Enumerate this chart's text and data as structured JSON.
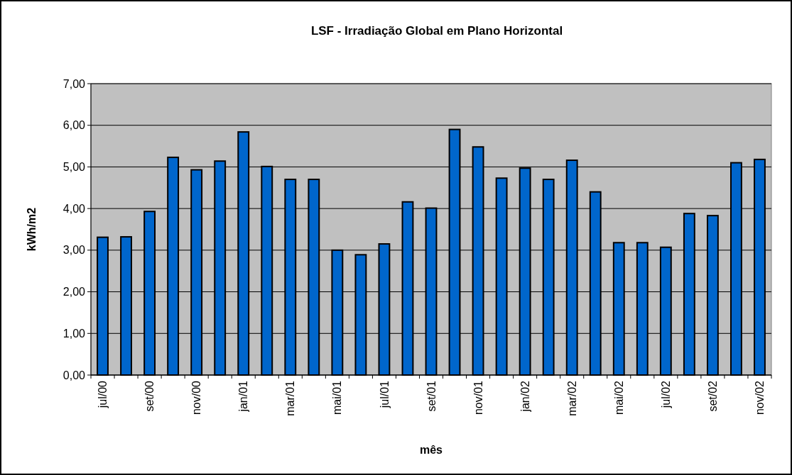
{
  "chart_data": {
    "type": "bar",
    "title": "LSF - Irradiação Global em Plano Horizontal",
    "xlabel": "mês",
    "ylabel": "kWh/m2",
    "categories": [
      "jul/00",
      null,
      "set/00",
      null,
      "nov/00",
      null,
      "jan/01",
      null,
      "mar/01",
      null,
      "mai/01",
      null,
      "jul/01",
      null,
      "set/01",
      null,
      "nov/01",
      null,
      "jan/02",
      null,
      "mar/02",
      null,
      "mai/02",
      null,
      "jul/02",
      null,
      "set/02",
      null,
      "nov/02"
    ],
    "values": [
      3.31,
      3.32,
      3.93,
      5.23,
      4.93,
      5.14,
      5.84,
      5.01,
      4.7,
      4.7,
      3.0,
      2.89,
      3.15,
      4.16,
      4.01,
      5.9,
      5.48,
      4.73,
      4.97,
      4.7,
      5.16,
      4.4,
      3.18,
      3.18,
      3.07,
      3.88,
      3.83,
      5.1,
      5.18
    ],
    "color": "#0066cc",
    "ylim": [
      0,
      7
    ],
    "yticks": [
      {
        "value": 0,
        "label": "0,00"
      },
      {
        "value": 1,
        "label": "1,00"
      },
      {
        "value": 2,
        "label": "2,00"
      },
      {
        "value": 3,
        "label": "3,00"
      },
      {
        "value": 4,
        "label": "4,00"
      },
      {
        "value": 5,
        "label": "5,00"
      },
      {
        "value": 6,
        "label": "6,00"
      },
      {
        "value": 7,
        "label": "7,00"
      }
    ],
    "grid": "y"
  }
}
